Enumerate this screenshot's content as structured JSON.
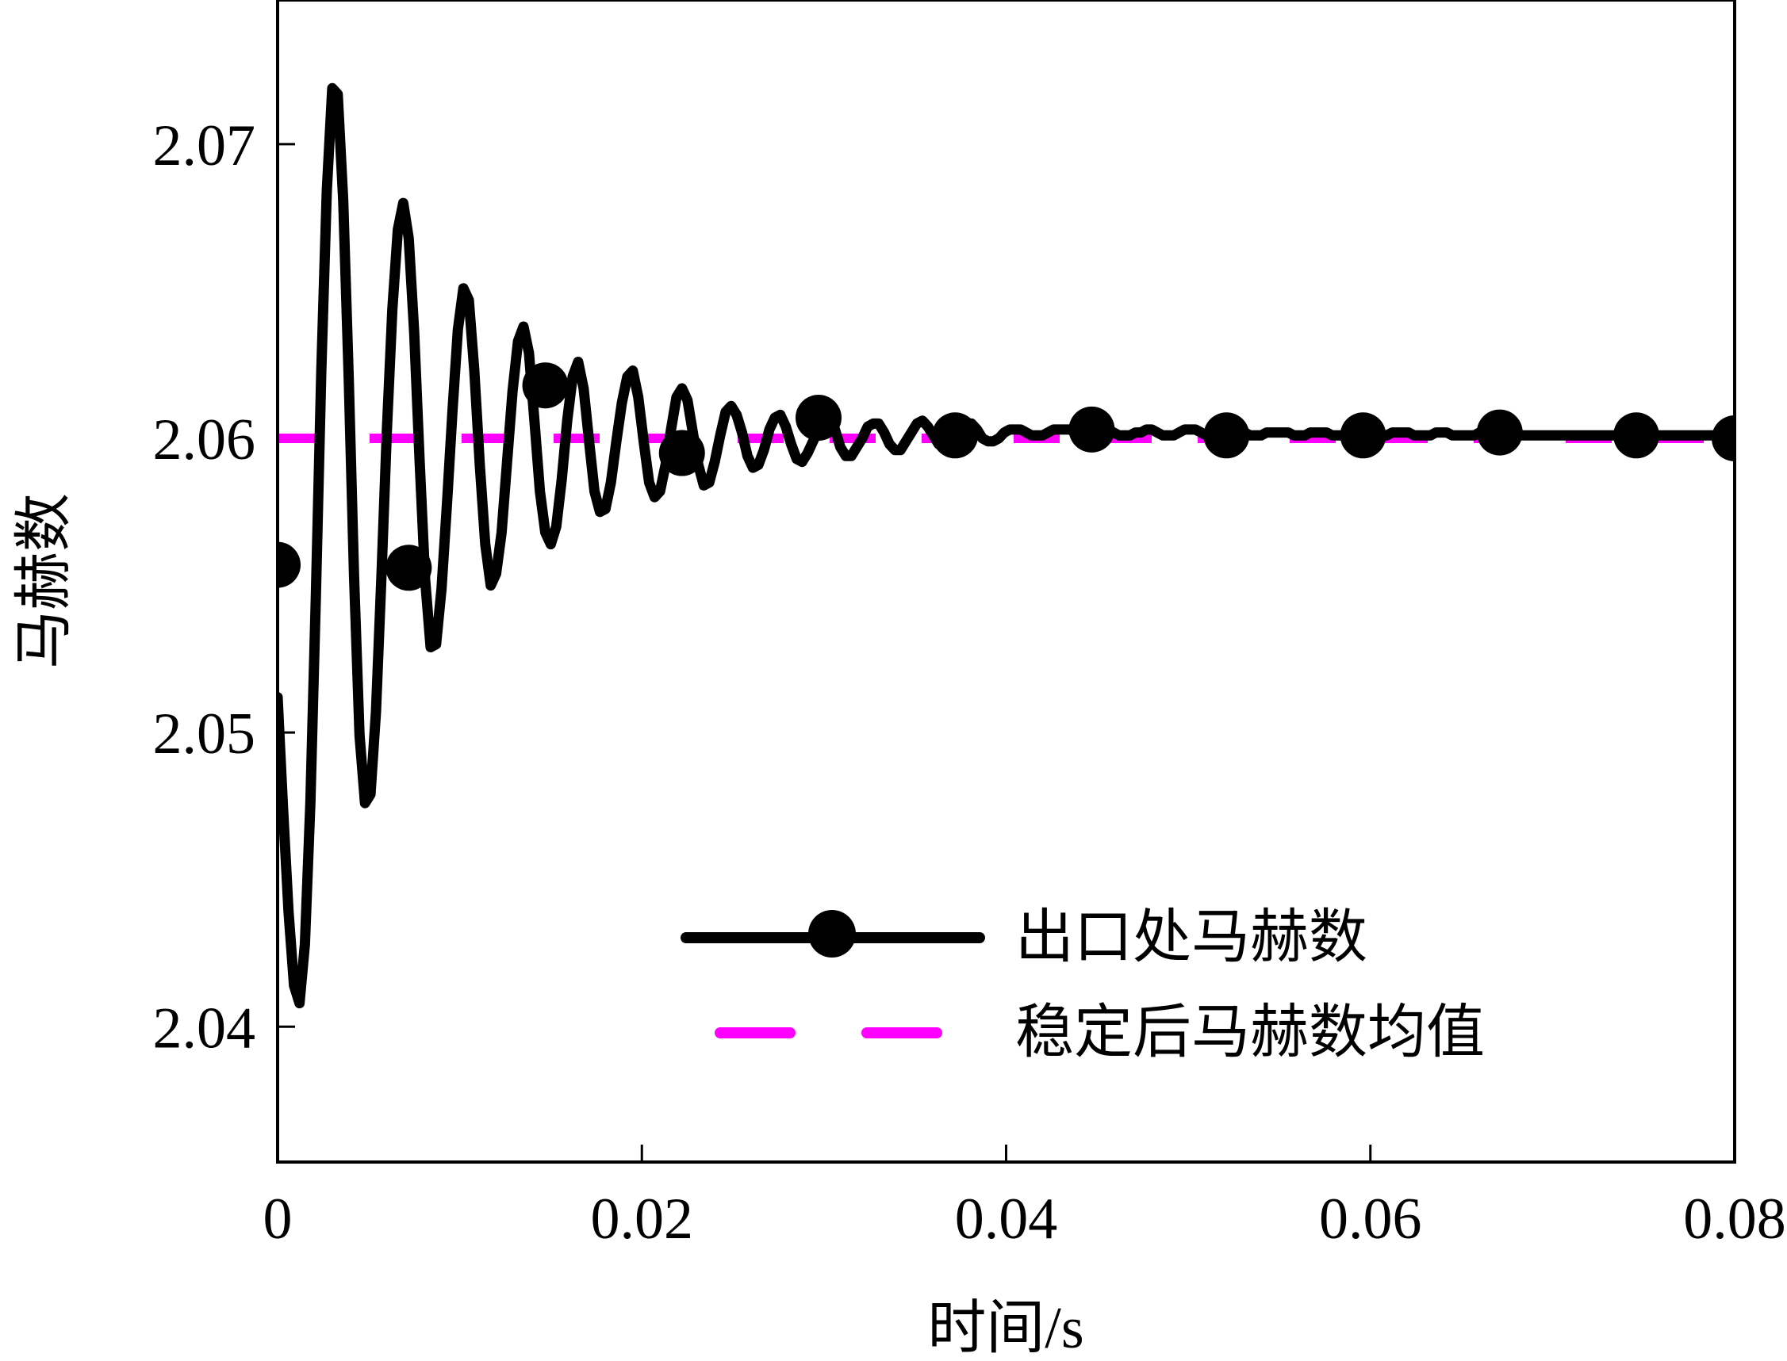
{
  "chart_data": {
    "type": "line",
    "xlabel": "时间/s",
    "ylabel": "马赫数",
    "xlim": [
      0,
      0.08
    ],
    "ylim": [
      2.0354,
      2.0749
    ],
    "xticks": [
      0,
      0.02,
      0.04,
      0.06,
      0.08
    ],
    "xtick_labels": [
      "0",
      "0.02",
      "0.04",
      "0.06",
      "0.08"
    ],
    "yticks": [
      2.04,
      2.05,
      2.06,
      2.07
    ],
    "ytick_labels": [
      "2.04",
      "2.05",
      "2.06",
      "2.07"
    ],
    "grid": false,
    "legend_position": "lower-right",
    "series": [
      {
        "name": "出口处马赫数",
        "color": "#000000",
        "style": "solid-with-circle-markers",
        "x": [
          0,
          0.0003,
          0.0006,
          0.0009,
          0.0012,
          0.0015,
          0.0018,
          0.0021,
          0.0024,
          0.0027,
          0.003,
          0.0033,
          0.0036,
          0.0039,
          0.0042,
          0.0045,
          0.0048,
          0.0051,
          0.0054,
          0.0057,
          0.006,
          0.0063,
          0.0066,
          0.0069,
          0.0072,
          0.0075,
          0.0078,
          0.0081,
          0.0084,
          0.0087,
          0.009,
          0.0093,
          0.0096,
          0.0099,
          0.0102,
          0.0105,
          0.0108,
          0.0111,
          0.0114,
          0.0117,
          0.012,
          0.0123,
          0.0126,
          0.0129,
          0.0132,
          0.0135,
          0.0138,
          0.0141,
          0.0144,
          0.0147,
          0.015,
          0.0153,
          0.0156,
          0.0159,
          0.0162,
          0.0165,
          0.0168,
          0.0171,
          0.0174,
          0.0177,
          0.018,
          0.0183,
          0.0186,
          0.0189,
          0.0192,
          0.0195,
          0.0198,
          0.0201,
          0.0204,
          0.0207,
          0.021,
          0.0213,
          0.0216,
          0.0219,
          0.0222,
          0.0225,
          0.0228,
          0.0231,
          0.0234,
          0.0237,
          0.024,
          0.0243,
          0.0246,
          0.0249,
          0.0252,
          0.0255,
          0.0258,
          0.0261,
          0.0264,
          0.0267,
          0.027,
          0.0273,
          0.0276,
          0.0279,
          0.0282,
          0.0285,
          0.0288,
          0.0291,
          0.0294,
          0.0297,
          0.03,
          0.0303,
          0.0306,
          0.0309,
          0.0312,
          0.0315,
          0.0318,
          0.0321,
          0.0324,
          0.0327,
          0.033,
          0.0333,
          0.0336,
          0.0339,
          0.0342,
          0.0345,
          0.0348,
          0.0351,
          0.0354,
          0.0357,
          0.036,
          0.0363,
          0.0366,
          0.0369,
          0.0372,
          0.0375,
          0.0378,
          0.0381,
          0.0384,
          0.0387,
          0.039,
          0.0393,
          0.0396,
          0.0399,
          0.0402,
          0.0405,
          0.0408,
          0.0411,
          0.0414,
          0.0417,
          0.042,
          0.0423,
          0.0426,
          0.0429,
          0.0432,
          0.0435,
          0.0438,
          0.0441,
          0.0444,
          0.0447,
          0.045,
          0.0453,
          0.0456,
          0.0459,
          0.0462,
          0.0465,
          0.0468,
          0.0471,
          0.0474,
          0.0477,
          0.048,
          0.0483,
          0.0486,
          0.0489,
          0.0492,
          0.0495,
          0.0498,
          0.0501,
          0.0504,
          0.0507,
          0.051,
          0.0513,
          0.0516,
          0.0519,
          0.0522,
          0.0525,
          0.0528,
          0.0531,
          0.0534,
          0.0537,
          0.054,
          0.0543,
          0.0546,
          0.0549,
          0.0552,
          0.0555,
          0.0558,
          0.0561,
          0.0564,
          0.0567,
          0.057,
          0.0573,
          0.0576,
          0.0579,
          0.0582,
          0.0585,
          0.0588,
          0.0591,
          0.0594,
          0.0597,
          0.06,
          0.0603,
          0.0606,
          0.0609,
          0.0612,
          0.0615,
          0.0618,
          0.0621,
          0.0624,
          0.0627,
          0.063,
          0.0633,
          0.0636,
          0.0639,
          0.0642,
          0.0645,
          0.0648,
          0.0651,
          0.0654,
          0.0657,
          0.066,
          0.0663,
          0.0666,
          0.0669,
          0.0672,
          0.0675,
          0.0678,
          0.0681,
          0.0684,
          0.0687,
          0.069,
          0.0693,
          0.0696,
          0.0699,
          0.0702,
          0.0705,
          0.0708,
          0.0711,
          0.0714,
          0.0717,
          0.072,
          0.0723,
          0.0726,
          0.0729,
          0.0732,
          0.0735,
          0.0738,
          0.0741,
          0.0744,
          0.0747,
          0.075,
          0.0753,
          0.0756,
          0.0759,
          0.0762,
          0.0765,
          0.0768,
          0.0771,
          0.0774,
          0.0777,
          0.078,
          0.0783,
          0.0786,
          0.0789,
          0.0792,
          0.0795,
          0.0798,
          0.08
        ],
        "y": [
          2.0512,
          2.0474,
          2.0439,
          2.0414,
          2.0408,
          2.0428,
          2.0476,
          2.0546,
          2.0623,
          2.0684,
          2.0719,
          2.0717,
          2.0681,
          2.0621,
          2.0553,
          2.0499,
          2.0476,
          2.0479,
          2.0507,
          2.0553,
          2.0603,
          2.0644,
          2.0671,
          2.068,
          2.0668,
          2.0636,
          2.0592,
          2.0552,
          2.0529,
          2.053,
          2.0549,
          2.0578,
          2.0609,
          2.0637,
          2.0651,
          2.0647,
          2.0623,
          2.0591,
          2.0564,
          2.055,
          2.0554,
          2.0568,
          2.0592,
          2.0616,
          2.0633,
          2.0638,
          2.0629,
          2.0606,
          2.0582,
          2.0568,
          2.0564,
          2.057,
          2.0586,
          2.0606,
          2.0621,
          2.0626,
          2.0617,
          2.0599,
          2.0582,
          2.0575,
          2.0576,
          2.0585,
          2.0599,
          2.0612,
          2.0621,
          2.0623,
          2.0614,
          2.0599,
          2.0585,
          2.058,
          2.0582,
          2.0591,
          2.0603,
          2.0614,
          2.0617,
          2.0613,
          2.0602,
          2.0591,
          2.0584,
          2.0585,
          2.0592,
          2.0601,
          2.0609,
          2.0611,
          2.0608,
          2.0602,
          2.0594,
          2.059,
          2.0591,
          2.0596,
          2.0603,
          2.0607,
          2.0608,
          2.0604,
          2.0598,
          2.0593,
          2.0592,
          2.0595,
          2.0599,
          2.0603,
          2.0606,
          2.0606,
          2.0603,
          2.0597,
          2.0594,
          2.0594,
          2.0597,
          2.06,
          2.0604,
          2.0605,
          2.0605,
          2.0602,
          2.0598,
          2.0596,
          2.0596,
          2.0599,
          2.0602,
          2.0605,
          2.0606,
          2.0604,
          2.0601,
          2.0598,
          2.0597,
          2.0598,
          2.0601,
          2.0604,
          2.0605,
          2.0605,
          2.0603,
          2.06,
          2.0599,
          2.0599,
          2.06,
          2.0602,
          2.0603,
          2.0603,
          2.0603,
          2.0602,
          2.0601,
          2.0601,
          2.0601,
          2.0602,
          2.0603,
          2.0603,
          2.0603,
          2.0603,
          2.0602,
          2.0601,
          2.0601,
          2.0602,
          2.0603,
          2.0603,
          2.0603,
          2.0602,
          2.0601,
          2.0601,
          2.0601,
          2.0602,
          2.0602,
          2.0603,
          2.0603,
          2.0602,
          2.0601,
          2.0601,
          2.0601,
          2.0602,
          2.0603,
          2.0603,
          2.0603,
          2.0602,
          2.0601,
          2.0601,
          2.0601,
          2.0602,
          2.0602,
          2.0603,
          2.0602,
          2.0602,
          2.0601,
          2.0601,
          2.0601,
          2.0602,
          2.0602,
          2.0602,
          2.0602,
          2.0602,
          2.0601,
          2.0601,
          2.0601,
          2.0602,
          2.0602,
          2.0602,
          2.0602,
          2.0601,
          2.0601,
          2.0601,
          2.0601,
          2.0602,
          2.0602,
          2.0602,
          2.0602,
          2.0601,
          2.0601,
          2.0601,
          2.0602,
          2.0602,
          2.0602,
          2.0602,
          2.0601,
          2.0601,
          2.0601,
          2.0601,
          2.0602,
          2.0602,
          2.0602,
          2.0601,
          2.0601,
          2.0601,
          2.0601,
          2.0601,
          2.0602,
          2.0602,
          2.0601,
          2.0601,
          2.0601,
          2.0601,
          2.0601,
          2.0601,
          2.0601,
          2.0601,
          2.0601,
          2.0601,
          2.0601,
          2.0601,
          2.0601,
          2.0601,
          2.0601,
          2.0601,
          2.0601,
          2.0601,
          2.0601,
          2.0601,
          2.0601,
          2.0601,
          2.0601,
          2.0601,
          2.0601,
          2.0601,
          2.0601,
          2.0601,
          2.0601,
          2.0601,
          2.0601,
          2.0601,
          2.0601,
          2.0601,
          2.0601,
          2.0601,
          2.0601,
          2.0601,
          2.0601,
          2.0601,
          2.0601,
          2.0601,
          2.0601,
          2.0601,
          2.0601,
          2.0601
        ],
        "markers": {
          "x": [
            0,
            0.0072,
            0.0147,
            0.0222,
            0.0297,
            0.0372,
            0.0447,
            0.0521,
            0.0596,
            0.0671,
            0.0746,
            0.08
          ],
          "y": [
            2.0557,
            2.0556,
            2.0618,
            2.0595,
            2.0607,
            2.0601,
            2.0603,
            2.0601,
            2.0601,
            2.0602,
            2.0601,
            2.06
          ]
        }
      },
      {
        "name": "稳定后马赫数均值",
        "color": "#ff00ff",
        "style": "dashed",
        "x": [
          0,
          0.08
        ],
        "y": [
          2.06,
          2.06
        ]
      }
    ],
    "legend": [
      {
        "label": "出口处马赫数",
        "color": "#000000",
        "style": "solid-with-circle-markers"
      },
      {
        "label": "稳定后马赫数均值",
        "color": "#ff00ff",
        "style": "dashed"
      }
    ]
  }
}
